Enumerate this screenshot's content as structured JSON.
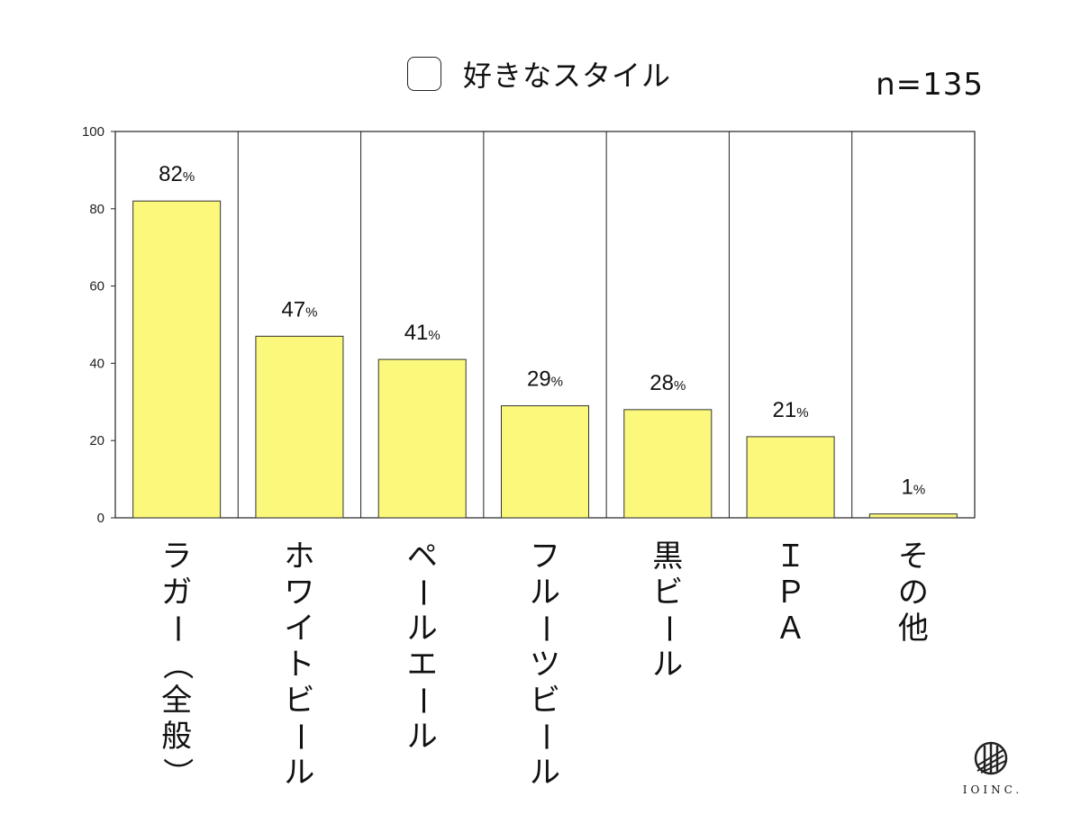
{
  "legend": {
    "label": "好きなスタイル"
  },
  "sample_size": "n=135",
  "brand": {
    "name": "IOINC."
  },
  "colors": {
    "bar": "#fbf87c",
    "bar_stroke": "#333333",
    "axis": "#222222"
  },
  "chart_data": {
    "type": "bar",
    "title": "",
    "xlabel": "",
    "ylabel": "",
    "ylim": [
      0,
      100
    ],
    "yticks": [
      0,
      20,
      40,
      60,
      80,
      100
    ],
    "categories": [
      "ラガー（全般）",
      "ホワイトビール",
      "ペールエール",
      "フルーツビール",
      "黒ビール",
      "ＩＰＡ",
      "その他"
    ],
    "series": [
      {
        "name": "好きなスタイル",
        "values": [
          82,
          47,
          41,
          29,
          28,
          21,
          1
        ],
        "value_labels": [
          "82%",
          "47%",
          "41%",
          "29%",
          "28%",
          "21%",
          "1%"
        ]
      }
    ],
    "grid": "vertical separators between categories",
    "legend_position": "top-center"
  }
}
